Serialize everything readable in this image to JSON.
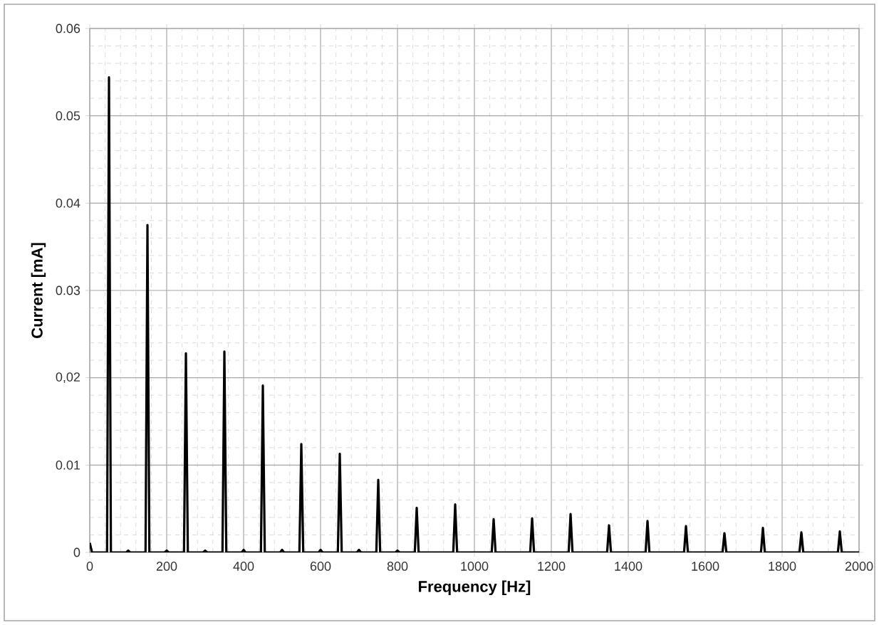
{
  "chart_data": {
    "type": "line",
    "xlabel": "Frequency [Hz]",
    "ylabel": "Current [mA]",
    "xlim": [
      0,
      2000
    ],
    "ylim": [
      0,
      0.06
    ],
    "xticks": [
      0,
      200,
      400,
      600,
      800,
      1000,
      1200,
      1400,
      1600,
      1800,
      2000
    ],
    "yticks": [
      0,
      {
        "value": 0.01,
        "label": "0.01"
      },
      {
        "value": 0.02,
        "label": "0,02"
      },
      {
        "value": 0.03,
        "label": "0.03"
      },
      {
        "value": 0.04,
        "label": "0.04"
      },
      {
        "value": 0.05,
        "label": "0.05"
      },
      {
        "value": 0.06,
        "label": "0.06"
      }
    ],
    "grid": true,
    "marker": "none",
    "line_style": "solid",
    "series": [
      {
        "color": "#000000",
        "x": [
          0,
          6,
          45,
          50,
          55,
          95,
          100,
          105,
          145,
          150,
          155,
          195,
          200,
          205,
          245,
          250,
          255,
          295,
          300,
          305,
          345,
          350,
          355,
          395,
          400,
          405,
          445,
          450,
          455,
          495,
          500,
          505,
          545,
          550,
          555,
          595,
          600,
          605,
          645,
          650,
          655,
          695,
          700,
          705,
          745,
          750,
          755,
          795,
          800,
          805,
          845,
          850,
          855,
          945,
          950,
          955,
          1045,
          1050,
          1055,
          1145,
          1150,
          1155,
          1245,
          1250,
          1255,
          1345,
          1350,
          1355,
          1445,
          1450,
          1455,
          1545,
          1550,
          1555,
          1645,
          1650,
          1655,
          1745,
          1750,
          1755,
          1845,
          1850,
          1855,
          1945,
          1950,
          1955,
          2000
        ],
        "values": [
          0.0011,
          0,
          0,
          0.0544,
          0,
          0,
          0.0002,
          0,
          0,
          0.0375,
          0,
          0,
          0.0002,
          0,
          0,
          0.0228,
          0,
          0,
          0.0002,
          0,
          0,
          0.023,
          0,
          0,
          0.0003,
          0,
          0,
          0.0191,
          0,
          0,
          0.0003,
          0,
          0,
          0.0124,
          0,
          0,
          0.0003,
          0,
          0,
          0.0113,
          0,
          0,
          0.0003,
          0,
          0,
          0.0083,
          0,
          0,
          0.0002,
          0,
          0,
          0.0051,
          0,
          0,
          0.0055,
          0,
          0,
          0.0038,
          0,
          0,
          0.0039,
          0,
          0,
          0.0044,
          0,
          0,
          0.0031,
          0,
          0,
          0.0036,
          0,
          0,
          0.003,
          0,
          0,
          0.0022,
          0,
          0,
          0.0028,
          0,
          0,
          0.0023,
          0,
          0,
          0.0024,
          0,
          0
        ]
      }
    ]
  }
}
